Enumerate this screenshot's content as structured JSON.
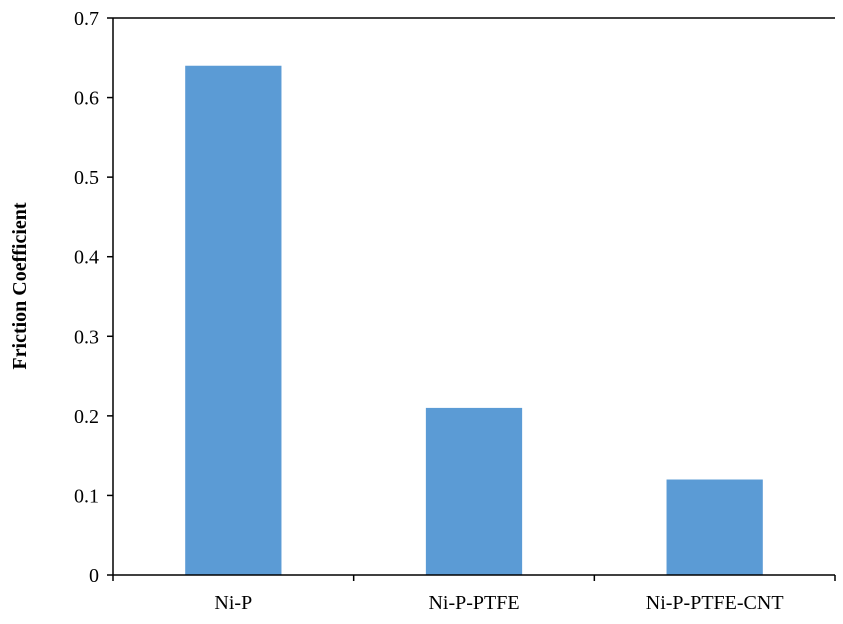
{
  "chart_data": {
    "type": "bar",
    "categories": [
      "Ni-P",
      "Ni-P-PTFE",
      "Ni-P-PTFE-CNT"
    ],
    "values": [
      0.64,
      0.21,
      0.12
    ],
    "title": "",
    "xlabel": "",
    "ylabel": "Friction Coefficient",
    "ylim": [
      0,
      0.7
    ],
    "yticks": [
      "0",
      "0.1",
      "0.2",
      "0.3",
      "0.4",
      "0.5",
      "0.6",
      "0.7"
    ],
    "grid": false,
    "legend": "none",
    "bar_color": "#5B9BD5",
    "axis_color": "#000000"
  }
}
